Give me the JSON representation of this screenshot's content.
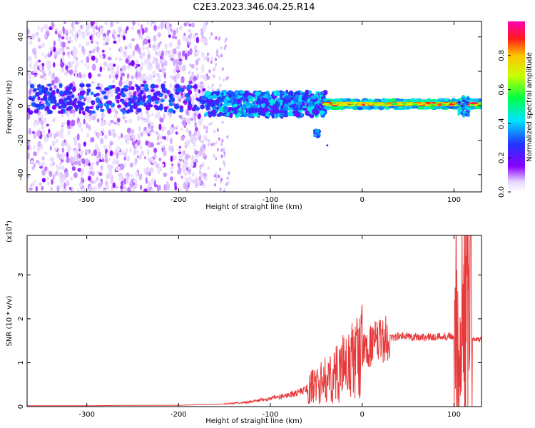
{
  "title": "C2E3.2023.346.04.25.R14",
  "chart_data": [
    {
      "type": "heatmap",
      "xlabel": "Height of straight line (km)",
      "ylabel": "Frequency (Hz)",
      "xlim": [
        -365,
        130
      ],
      "ylim": [
        -50,
        49
      ],
      "xticks": [
        -300,
        -200,
        -100,
        0,
        100
      ],
      "xtick_labels": [
        "-300",
        "-200",
        "-100",
        "0",
        "100"
      ],
      "yticks": [
        -40,
        -20,
        0,
        20,
        40
      ],
      "ytick_labels": [
        "-40",
        "-20",
        "0",
        "20",
        "40"
      ],
      "colorbar": {
        "label": "Normalized spectral amplitude",
        "range": [
          0,
          1
        ],
        "ticks": [
          0.0,
          0.2,
          0.4,
          0.6,
          0.8
        ],
        "tick_labels": [
          "0.0",
          "0.2",
          "0.4",
          "0.6",
          "0.8"
        ],
        "colormap": "rainbow (white-violet-blue-cyan-green-yellow-red-magenta)"
      },
      "features": [
        {
          "x_range": [
            -365,
            -170
          ],
          "freq_range": [
            -50,
            49
          ],
          "amplitude": 0.15,
          "note": "broadband noise"
        },
        {
          "x_range": [
            -170,
            -40
          ],
          "center_freq": 0,
          "amplitude": 0.35
        },
        {
          "x_range": [
            -40,
            130
          ],
          "center_freq": 1,
          "amplitude": 0.85
        }
      ],
      "grid": false
    },
    {
      "type": "line",
      "xlabel": "Height of straight line (km)",
      "ylabel": "SNR (10 * v/v)",
      "yscale_label": "(x10",
      "yscale_exp": "4",
      "yscale_suffix": ")",
      "xlim": [
        -365,
        130
      ],
      "ylim": [
        0,
        3.9
      ],
      "xticks": [
        -300,
        -200,
        -100,
        0,
        100
      ],
      "xtick_labels": [
        "-300",
        "-200",
        "-100",
        "0",
        "100"
      ],
      "yticks": [
        0,
        1,
        2,
        3
      ],
      "ytick_labels": [
        "0",
        "1",
        "2",
        "3"
      ],
      "series": [
        {
          "color": "#e8393a",
          "x": [
            -365,
            -300,
            -250,
            -200,
            -160,
            -130,
            -110,
            -90,
            -70,
            -55,
            -45,
            -35,
            -28,
            -22,
            -15,
            -10,
            -5,
            0,
            10,
            20,
            30,
            40,
            50,
            70,
            90,
            100,
            105,
            110,
            115,
            120,
            130
          ],
          "y": [
            0.02,
            0.02,
            0.03,
            0.03,
            0.05,
            0.09,
            0.15,
            0.22,
            0.32,
            0.45,
            0.55,
            0.65,
            0.75,
            0.85,
            0.95,
            1.05,
            1.15,
            1.25,
            1.4,
            1.5,
            1.56,
            1.6,
            1.6,
            1.58,
            1.6,
            1.62,
            1.7,
            2.0,
            1.9,
            1.55,
            1.52
          ]
        }
      ],
      "grid": false
    }
  ]
}
